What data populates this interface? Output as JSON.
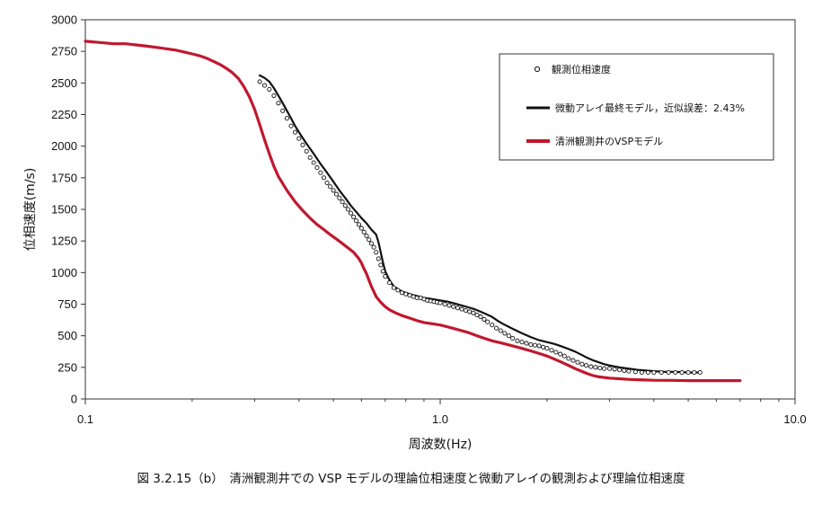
{
  "caption": "図 3.2.15（b）　清洲観測井での VSP モデルの理論位相速度と微動アレイの観測および理論位相速度",
  "chart_data": {
    "type": "line",
    "xscale": "log",
    "xlim": [
      0.1,
      10.0
    ],
    "ylim": [
      0,
      3000
    ],
    "xlabel": "周波数(Hz)",
    "ylabel": "位相速度(m/s)",
    "x_ticks": [
      "0.1",
      "1.0",
      "10.0"
    ],
    "y_ticks": [
      0,
      250,
      500,
      750,
      1000,
      1250,
      1500,
      1750,
      2000,
      2250,
      2500,
      2750,
      3000
    ],
    "grid": false,
    "legend_position": "top-right",
    "series": [
      {
        "name": "観測位相速度",
        "style": "markers",
        "color": "#111111",
        "x": [
          0.31,
          0.32,
          0.33,
          0.34,
          0.35,
          0.36,
          0.37,
          0.38,
          0.39,
          0.4,
          0.41,
          0.42,
          0.43,
          0.44,
          0.45,
          0.46,
          0.47,
          0.48,
          0.49,
          0.5,
          0.51,
          0.52,
          0.53,
          0.54,
          0.55,
          0.56,
          0.57,
          0.58,
          0.59,
          0.6,
          0.61,
          0.62,
          0.63,
          0.64,
          0.65,
          0.66,
          0.67,
          0.68,
          0.69,
          0.7,
          0.72,
          0.74,
          0.76,
          0.78,
          0.8,
          0.82,
          0.84,
          0.86,
          0.88,
          0.9,
          0.92,
          0.94,
          0.96,
          0.98,
          1.0,
          1.03,
          1.06,
          1.09,
          1.12,
          1.15,
          1.18,
          1.21,
          1.24,
          1.27,
          1.3,
          1.33,
          1.36,
          1.4,
          1.44,
          1.48,
          1.52,
          1.56,
          1.6,
          1.65,
          1.7,
          1.75,
          1.8,
          1.85,
          1.9,
          1.95,
          2.0,
          2.06,
          2.12,
          2.18,
          2.24,
          2.3,
          2.37,
          2.44,
          2.51,
          2.58,
          2.66,
          2.74,
          2.82,
          2.9,
          3.0,
          3.1,
          3.2,
          3.3,
          3.4,
          3.55,
          3.7,
          3.85,
          4.0,
          4.2,
          4.4,
          4.6,
          4.8,
          5.0,
          5.2,
          5.4
        ],
        "y": [
          2510,
          2480,
          2450,
          2400,
          2340,
          2280,
          2220,
          2160,
          2110,
          2060,
          2010,
          1960,
          1910,
          1870,
          1830,
          1790,
          1750,
          1710,
          1680,
          1650,
          1620,
          1590,
          1560,
          1530,
          1500,
          1470,
          1440,
          1410,
          1380,
          1350,
          1320,
          1290,
          1260,
          1230,
          1200,
          1160,
          1110,
          1060,
          1010,
          970,
          920,
          880,
          860,
          840,
          830,
          820,
          810,
          800,
          800,
          790,
          780,
          775,
          770,
          765,
          760,
          750,
          740,
          730,
          720,
          710,
          700,
          690,
          680,
          665,
          650,
          630,
          610,
          585,
          560,
          540,
          520,
          500,
          480,
          460,
          450,
          440,
          430,
          425,
          420,
          410,
          400,
          385,
          370,
          355,
          340,
          320,
          305,
          290,
          275,
          265,
          255,
          250,
          245,
          240,
          240,
          235,
          230,
          225,
          220,
          215,
          210,
          210,
          210,
          210,
          210,
          210,
          210,
          210,
          210,
          210
        ]
      },
      {
        "name": "微動アレイ最終モデル，近似誤差：2.43%",
        "style": "line",
        "color": "#111111",
        "x": [
          0.31,
          0.32,
          0.33,
          0.34,
          0.35,
          0.36,
          0.37,
          0.38,
          0.39,
          0.4,
          0.42,
          0.44,
          0.46,
          0.48,
          0.5,
          0.52,
          0.54,
          0.56,
          0.58,
          0.6,
          0.62,
          0.64,
          0.65,
          0.66,
          0.67,
          0.68,
          0.69,
          0.7,
          0.72,
          0.74,
          0.76,
          0.78,
          0.8,
          0.83,
          0.86,
          0.9,
          0.95,
          1.0,
          1.05,
          1.1,
          1.15,
          1.2,
          1.25,
          1.3,
          1.35,
          1.4,
          1.45,
          1.5,
          1.6,
          1.7,
          1.8,
          1.9,
          2.0,
          2.1,
          2.2,
          2.3,
          2.4,
          2.5,
          2.6,
          2.7,
          2.8,
          2.9,
          3.0,
          3.2,
          3.4,
          3.6,
          3.8,
          4.0,
          4.3,
          4.6,
          5.0,
          5.4
        ],
        "y": [
          2560,
          2540,
          2510,
          2460,
          2400,
          2340,
          2280,
          2220,
          2160,
          2110,
          2020,
          1940,
          1860,
          1790,
          1720,
          1650,
          1590,
          1530,
          1480,
          1430,
          1390,
          1340,
          1320,
          1300,
          1240,
          1160,
          1080,
          1010,
          940,
          890,
          870,
          850,
          840,
          825,
          815,
          800,
          790,
          780,
          770,
          755,
          740,
          725,
          710,
          690,
          670,
          650,
          620,
          595,
          555,
          520,
          490,
          465,
          450,
          435,
          415,
          395,
          375,
          350,
          325,
          305,
          290,
          275,
          265,
          250,
          240,
          230,
          225,
          220,
          215,
          215,
          210,
          210
        ]
      },
      {
        "name": "清洲観測井のVSPモデル",
        "style": "line",
        "color": "#c0182e",
        "x": [
          0.1,
          0.11,
          0.12,
          0.13,
          0.14,
          0.15,
          0.16,
          0.17,
          0.18,
          0.19,
          0.2,
          0.21,
          0.22,
          0.23,
          0.24,
          0.25,
          0.26,
          0.27,
          0.28,
          0.29,
          0.3,
          0.31,
          0.32,
          0.33,
          0.34,
          0.35,
          0.37,
          0.39,
          0.41,
          0.43,
          0.45,
          0.47,
          0.49,
          0.51,
          0.53,
          0.55,
          0.57,
          0.59,
          0.6,
          0.61,
          0.62,
          0.63,
          0.64,
          0.65,
          0.66,
          0.68,
          0.7,
          0.72,
          0.75,
          0.78,
          0.82,
          0.86,
          0.9,
          0.95,
          1.0,
          1.05,
          1.1,
          1.2,
          1.3,
          1.4,
          1.5,
          1.6,
          1.7,
          1.8,
          1.9,
          2.0,
          2.1,
          2.2,
          2.3,
          2.4,
          2.5,
          2.6,
          2.7,
          2.8,
          3.0,
          3.2,
          3.4,
          3.6,
          3.8,
          4.0,
          4.5,
          5.0,
          5.5,
          6.0,
          6.5,
          7.0
        ],
        "y": [
          2830,
          2820,
          2810,
          2810,
          2800,
          2790,
          2780,
          2770,
          2760,
          2745,
          2730,
          2715,
          2695,
          2670,
          2645,
          2615,
          2580,
          2535,
          2470,
          2390,
          2290,
          2170,
          2050,
          1940,
          1840,
          1760,
          1650,
          1560,
          1490,
          1430,
          1380,
          1340,
          1300,
          1265,
          1230,
          1195,
          1160,
          1110,
          1075,
          1030,
          990,
          940,
          890,
          850,
          810,
          765,
          730,
          705,
          680,
          660,
          640,
          620,
          605,
          595,
          585,
          570,
          555,
          525,
          490,
          460,
          440,
          420,
          400,
          380,
          360,
          340,
          315,
          290,
          265,
          240,
          220,
          200,
          185,
          175,
          165,
          160,
          155,
          152,
          150,
          148,
          147,
          145,
          145,
          145,
          145,
          145
        ]
      }
    ]
  }
}
